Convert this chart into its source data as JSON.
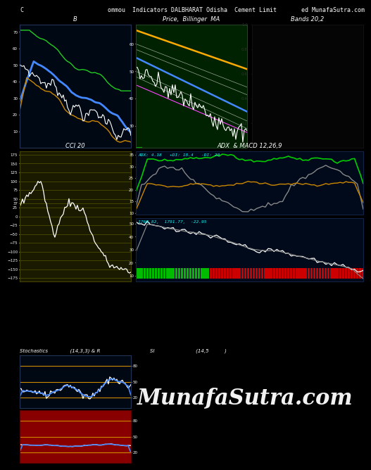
{
  "title": "ommou  Indicators DALBHARAT Odisha  Cement Limit",
  "title_right": "ed MunafaSutra.com",
  "title_left": "C",
  "bg_color": "#000000",
  "panel1_bg": "#000814",
  "panel2_bg": "#002200",
  "panel3_bg": "#1a1a00",
  "panel4_bg": "#000a1a",
  "panel5_bg": "#000a1a",
  "panel6_bg": "#000814",
  "panel7_bg": "#3a0000",
  "label_B": "B",
  "label_price_ma": "Price,  Billinger  MA",
  "label_bands": "Bands 20,2",
  "label_cci": "CCI 20",
  "label_adx_macd": "ADX  & MACD 12,26,9",
  "label_stoch": "Stochastics              (14,3,3) & R",
  "label_rsi": "SI                          (14,5",
  "label_rsi_right": ")",
  "adx_label": "ADX: 4.18   +DI: 18.4   -DI: 20",
  "macd_label": "1768.82,  1791.77,  -22.95",
  "munafa_text": "MunafaSutra.com",
  "cci_yticks": [
    175,
    150,
    125,
    100,
    75,
    50,
    37,
    25,
    0,
    -25,
    -50,
    -75,
    -100,
    -125,
    -150,
    -175
  ],
  "stoch_yticks": [
    80,
    50,
    20
  ],
  "rsi_yticks": [
    80,
    50,
    20
  ],
  "orange_line": "#cc8800",
  "blue_line": "#4488ff",
  "stoch_bg": "#000814",
  "rsi_bg": "#880000"
}
